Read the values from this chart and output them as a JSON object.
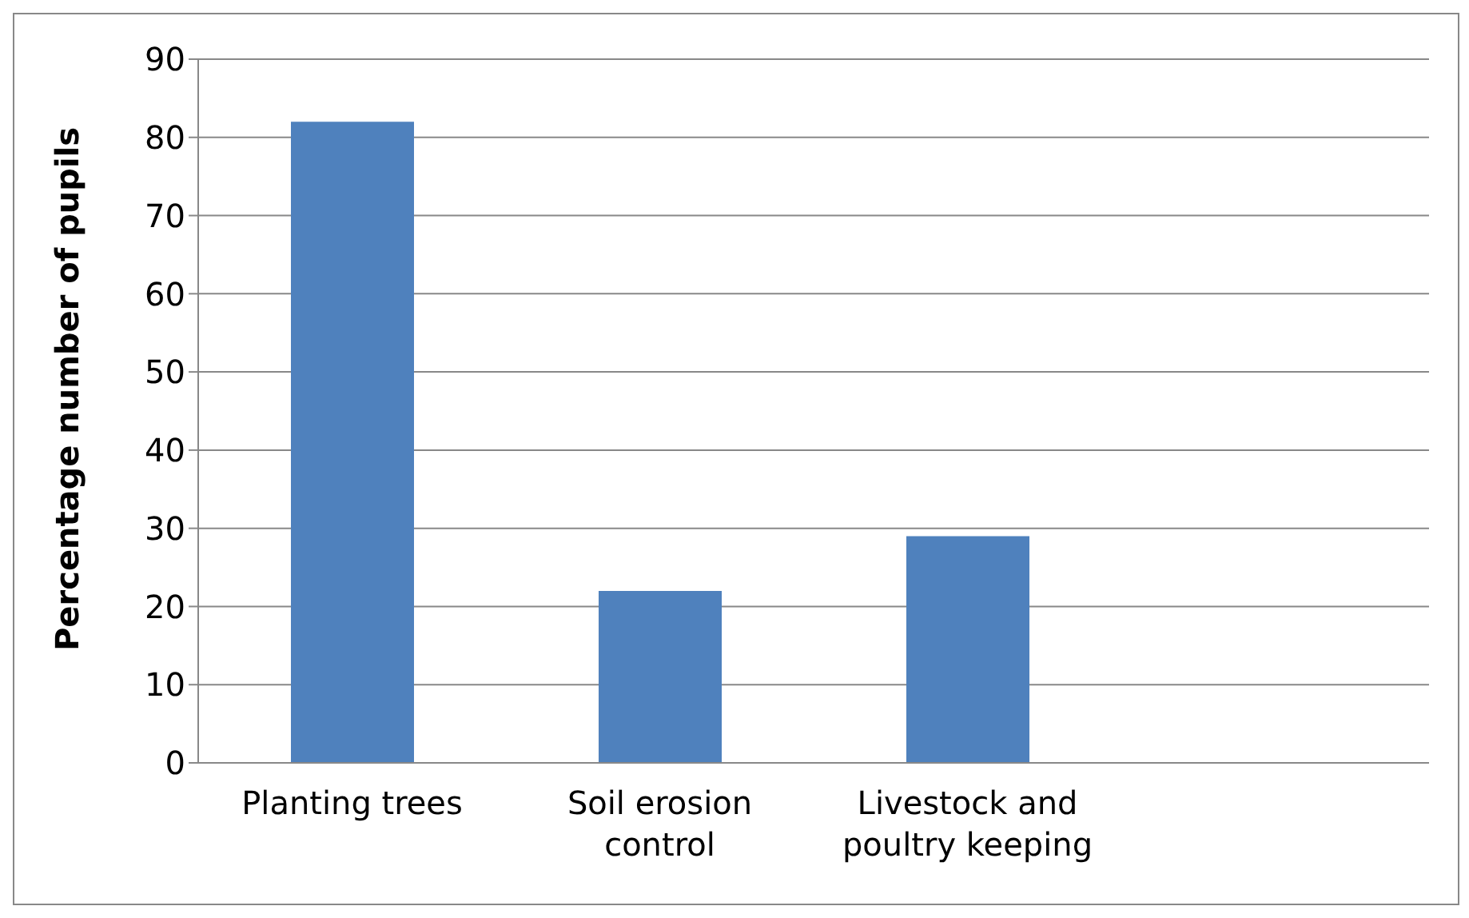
{
  "chart_data": {
    "type": "bar",
    "ylabel": "Percentage number of pupils",
    "categories": [
      "Planting trees",
      "Soil erosion control",
      "Livestock and poultry keeping",
      null
    ],
    "values": [
      82,
      22,
      29,
      null
    ],
    "color": "#4f81bd",
    "ylim": [
      0,
      90
    ],
    "yticks": [
      0,
      10,
      20,
      30,
      40,
      50,
      60,
      70,
      80,
      90
    ],
    "grid": "y",
    "legend": false
  }
}
